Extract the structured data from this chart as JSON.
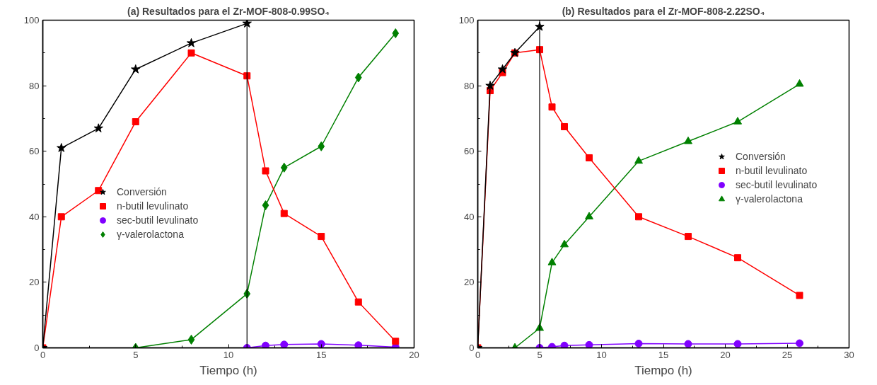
{
  "chart_data": [
    {
      "type": "line",
      "title": "(a) Resultados para el Zr-MOF-808-0.99SO₄",
      "xlabel": "Tiempo (h)",
      "xlim": [
        0,
        20
      ],
      "xticks": [
        0,
        5,
        10,
        15,
        20
      ],
      "ylim": [
        0,
        100
      ],
      "yticks": [
        0,
        20,
        40,
        60,
        80,
        100
      ],
      "grid": false,
      "legend": "bottom left",
      "ref_lines": [
        {
          "axis": "x",
          "value": 11,
          "color": "#000000"
        }
      ],
      "series": [
        {
          "name": "Conversión",
          "color": "#000000",
          "marker": "star",
          "x": [
            0,
            1,
            3,
            5,
            8,
            11
          ],
          "values": [
            0,
            61,
            67,
            85,
            93,
            99
          ]
        },
        {
          "name": "n-butil levulinato",
          "color": "#ff0000",
          "marker": "square",
          "x": [
            0,
            1,
            3,
            5,
            8,
            11,
            12,
            13,
            15,
            17,
            19
          ],
          "values": [
            0,
            40,
            48,
            69,
            90,
            83,
            54,
            41,
            34,
            14,
            2
          ]
        },
        {
          "name": "sec-butil levulinato",
          "color": "#8000ff",
          "marker": "circle",
          "x": [
            11,
            12,
            13,
            15,
            17,
            19
          ],
          "values": [
            0,
            0.7,
            1,
            1.2,
            0.8,
            0.2
          ]
        },
        {
          "name": "γ-valerolactona",
          "color": "#008000",
          "marker": "diamond",
          "x": [
            5,
            8,
            11,
            12,
            13,
            15,
            17,
            19
          ],
          "values": [
            0,
            2.5,
            16.5,
            43.5,
            55,
            61.5,
            82.5,
            96
          ]
        }
      ]
    },
    {
      "type": "line",
      "title": "(b) Resultados para el Zr-MOF-808-2.22SO₄",
      "xlabel": "Tiempo (h)",
      "xlim": [
        0,
        30
      ],
      "xticks": [
        0,
        5,
        10,
        15,
        20,
        25,
        30
      ],
      "ylim": [
        0,
        100
      ],
      "yticks": [
        0,
        20,
        40,
        60,
        80,
        100
      ],
      "grid": false,
      "legend": "right",
      "ref_lines": [
        {
          "axis": "x",
          "value": 5,
          "color": "#000000"
        }
      ],
      "series": [
        {
          "name": "Conversión",
          "color": "#000000",
          "marker": "star",
          "x": [
            0,
            1,
            2,
            3,
            5
          ],
          "values": [
            0,
            80,
            85,
            90,
            98
          ]
        },
        {
          "name": "n-butil levulinato",
          "color": "#ff0000",
          "marker": "square",
          "x": [
            0,
            1,
            2,
            3,
            5,
            6,
            7,
            9,
            13,
            17,
            21,
            26
          ],
          "values": [
            0,
            78.5,
            84,
            90,
            91,
            73.5,
            67.5,
            58,
            40,
            34,
            27.5,
            16
          ]
        },
        {
          "name": "sec-butil levulinato",
          "color": "#8000ff",
          "marker": "circle",
          "x": [
            5,
            6,
            7,
            9,
            13,
            17,
            21,
            26
          ],
          "values": [
            0,
            0.3,
            0.7,
            0.9,
            1.3,
            1.2,
            1.2,
            1.4
          ]
        },
        {
          "name": "γ-valerolactona",
          "color": "#008000",
          "marker": "triangle",
          "x": [
            3,
            5,
            6,
            7,
            9,
            13,
            17,
            21,
            26
          ],
          "values": [
            0,
            6,
            26,
            31.5,
            40,
            57,
            63,
            69,
            80.5
          ]
        }
      ]
    }
  ]
}
